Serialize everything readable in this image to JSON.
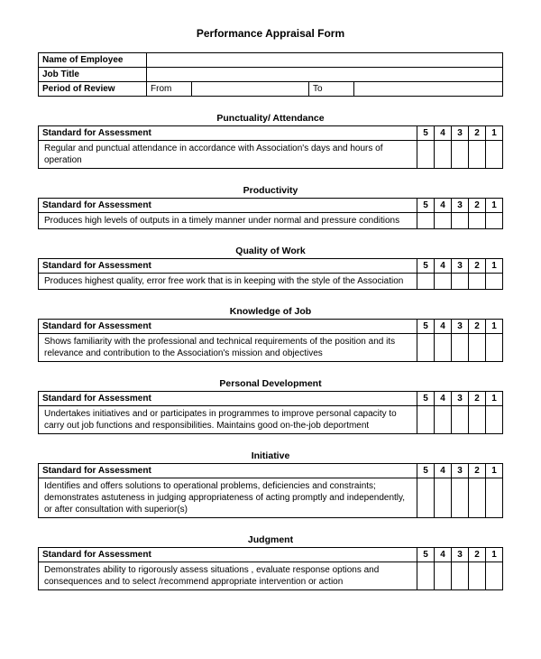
{
  "title": "Performance Appraisal Form",
  "info": {
    "name_label": "Name of Employee",
    "job_label": "Job Title",
    "period_label": "Period of Review",
    "from_label": "From",
    "to_label": "To"
  },
  "std_label": "Standard for Assessment",
  "scores": [
    "5",
    "4",
    "3",
    "2",
    "1"
  ],
  "sections": [
    {
      "title": "Punctuality/ Attendance",
      "desc": "Regular and punctual attendance in accordance with Association's days and hours of operation"
    },
    {
      "title": "Productivity",
      "desc": "Produces high levels of outputs in a timely manner under normal and pressure conditions"
    },
    {
      "title": "Quality of Work",
      "desc": "Produces highest quality, error free work that is in keeping with the style of the Association"
    },
    {
      "title": "Knowledge of Job",
      "desc": "Shows familiarity with the professional and technical requirements of the position and its relevance and contribution to the Association's mission and objectives"
    },
    {
      "title": "Personal Development",
      "desc": "Undertakes initiatives and or participates in programmes to improve personal capacity to carry out job functions and responsibilities.  Maintains good on-the-job deportment"
    },
    {
      "title": "Initiative",
      "desc": "Identifies and offers solutions to operational problems, deficiencies and constraints; demonstrates astuteness in judging appropriateness of acting promptly and independently, or after consultation with superior(s)"
    },
    {
      "title": "Judgment",
      "desc": "Demonstrates ability to rigorously assess situations , evaluate response options and consequences and to select /recommend appropriate intervention or action"
    }
  ]
}
